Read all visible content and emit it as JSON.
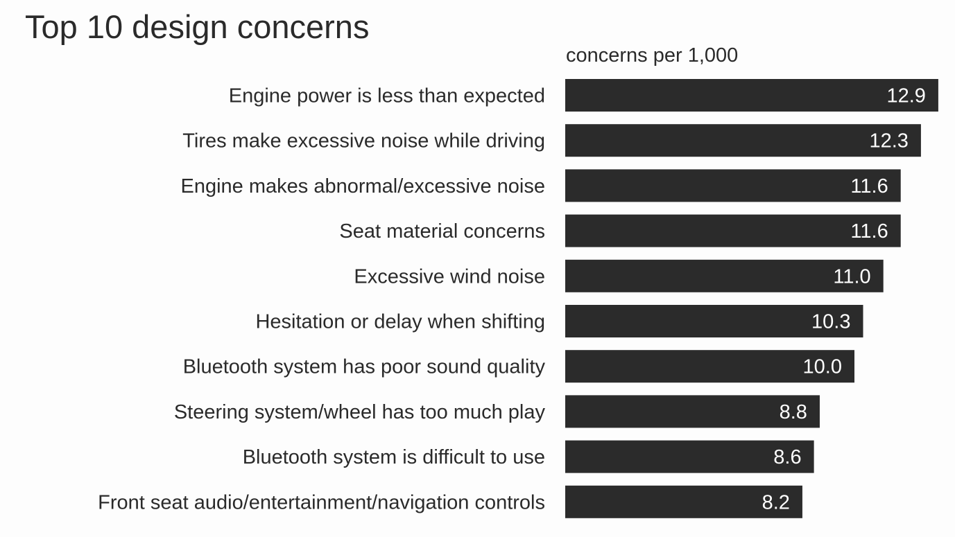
{
  "chart_data": {
    "type": "bar",
    "orientation": "horizontal",
    "title": "Top 10 design concerns",
    "unit_label": "concerns per 1,000",
    "xlabel": "",
    "ylabel": "",
    "grid": false,
    "categories": [
      "Engine power is less than expected",
      "Tires make excessive noise while driving",
      "Engine makes abnormal/excessive noise",
      "Seat material concerns",
      "Excessive wind noise",
      "Hesitation or delay when shifting",
      "Bluetooth system has poor sound quality",
      "Steering system/wheel has too much play",
      "Bluetooth system is difficult to use",
      "Front seat audio/entertainment/navigation controls"
    ],
    "values": [
      12.9,
      12.3,
      11.6,
      11.6,
      11.0,
      10.3,
      10.0,
      8.8,
      8.6,
      8.2
    ],
    "value_labels": [
      "12.9",
      "12.3",
      "11.6",
      "11.6",
      "11.0",
      "10.3",
      "10.0",
      "8.8",
      "8.6",
      "8.2"
    ],
    "bar_color": "#2b2b2b",
    "value_label_color": "#ffffff"
  }
}
